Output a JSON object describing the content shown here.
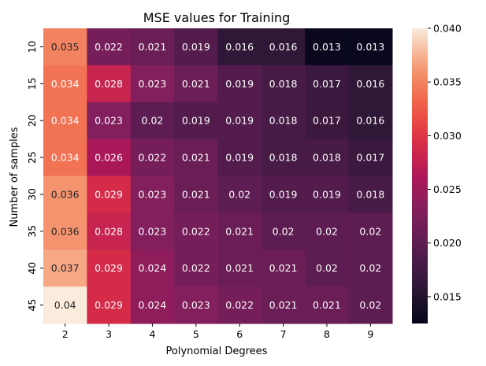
{
  "chart_data": {
    "type": "heatmap",
    "title": "MSE values for Training",
    "xlabel": "Polynomial Degrees",
    "ylabel": "Number of samples",
    "x_categories": [
      "2",
      "3",
      "4",
      "5",
      "6",
      "7",
      "8",
      "9"
    ],
    "y_categories": [
      "10",
      "15",
      "20",
      "25",
      "30",
      "35",
      "40",
      "45"
    ],
    "values": [
      [
        0.035,
        0.022,
        0.021,
        0.019,
        0.016,
        0.016,
        0.013,
        0.013
      ],
      [
        0.034,
        0.028,
        0.023,
        0.021,
        0.019,
        0.018,
        0.017,
        0.016
      ],
      [
        0.034,
        0.023,
        0.02,
        0.019,
        0.019,
        0.018,
        0.017,
        0.016
      ],
      [
        0.034,
        0.026,
        0.022,
        0.021,
        0.019,
        0.018,
        0.018,
        0.017
      ],
      [
        0.036,
        0.029,
        0.023,
        0.021,
        0.02,
        0.019,
        0.019,
        0.018
      ],
      [
        0.036,
        0.028,
        0.023,
        0.022,
        0.021,
        0.02,
        0.02,
        0.02
      ],
      [
        0.037,
        0.029,
        0.024,
        0.022,
        0.021,
        0.021,
        0.02,
        0.02
      ],
      [
        0.04,
        0.029,
        0.024,
        0.023,
        0.022,
        0.021,
        0.021,
        0.02
      ]
    ],
    "colorbar": {
      "min": 0.0125,
      "max": 0.04,
      "ticks": [
        0.015,
        0.02,
        0.025,
        0.03,
        0.035,
        0.04
      ],
      "tick_labels": [
        "0.015",
        "0.020",
        "0.025",
        "0.030",
        "0.035",
        "0.040"
      ]
    },
    "colormap": "rocket",
    "annotations": true
  }
}
